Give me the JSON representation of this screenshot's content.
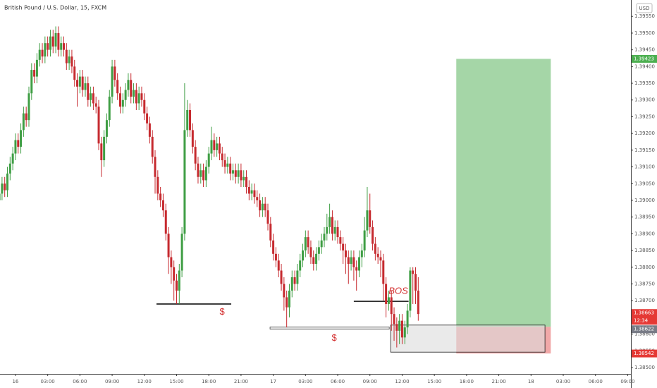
{
  "chart_data": {
    "type": "candlestick",
    "title": "British Pound / U.S. Dollar, 15, FXCM",
    "currency": "USD",
    "up_color": "#3f9e44",
    "down_color": "#c62a2f",
    "grid": false,
    "x": [
      -1.5,
      -1.25,
      -1,
      -0.75,
      -0.5,
      -0.25,
      0,
      0.25,
      0.5,
      0.75,
      1,
      1.25,
      1.5,
      1.75,
      2,
      2.25,
      2.5,
      2.75,
      3,
      3.25,
      3.5,
      3.75,
      4,
      4.25,
      4.5,
      4.75,
      5,
      5.25,
      5.5,
      5.75,
      6,
      6.25,
      6.5,
      6.75,
      7,
      7.25,
      7.5,
      7.75,
      8,
      8.25,
      8.5,
      8.75,
      9,
      9.25,
      9.5,
      9.75,
      10,
      10.25,
      10.5,
      10.75,
      11,
      11.25,
      11.5,
      11.75,
      12,
      12.25,
      12.5,
      12.75,
      13,
      13.25,
      13.5,
      13.75,
      14,
      14.25,
      14.5,
      14.75,
      15,
      15.25,
      15.5,
      15.75,
      16,
      16.25,
      16.5,
      16.75,
      17,
      17.25,
      17.5,
      17.75,
      18,
      18.25,
      18.5,
      18.75,
      19,
      19.25,
      19.5,
      19.75,
      20,
      20.25,
      20.5,
      20.75,
      21,
      21.25,
      21.5,
      21.75,
      22,
      22.25,
      22.5,
      22.75,
      23,
      23.25,
      23.5,
      23.75,
      24,
      24.25,
      24.5,
      24.75,
      25,
      25.25,
      25.5,
      25.75,
      26,
      26.25,
      26.5,
      26.75,
      27,
      27.25,
      27.5,
      27.75,
      28,
      28.25,
      28.5,
      28.75,
      29,
      29.25,
      29.5,
      29.75,
      30,
      30.25,
      30.5,
      30.75,
      31,
      31.25,
      31.5,
      31.75,
      32,
      32.25,
      32.5,
      32.75,
      33,
      33.25,
      33.5,
      33.75,
      34,
      34.25,
      34.5,
      34.75,
      35,
      35.25,
      35.5,
      35.75,
      36,
      36.25,
      36.5,
      36.75,
      37,
      37.25,
      37.5
    ],
    "open": [
      1.39,
      1.3902,
      1.3905,
      1.3903,
      1.3908,
      1.3911,
      1.3914,
      1.3918,
      1.3916,
      1.3921,
      1.3926,
      1.3924,
      1.3932,
      1.3939,
      1.3937,
      1.3942,
      1.3945,
      1.3943,
      1.3947,
      1.3945,
      1.3949,
      1.3946,
      1.395,
      1.3945,
      1.3947,
      1.3945,
      1.3941,
      1.3943,
      1.394,
      1.3936,
      1.3934,
      1.3937,
      1.3933,
      1.3935,
      1.393,
      1.3932,
      1.3929,
      1.3928,
      1.3917,
      1.3912,
      1.3919,
      1.3924,
      1.3931,
      1.394,
      1.3936,
      1.3932,
      1.3928,
      1.393,
      1.3933,
      1.3936,
      1.3931,
      1.3933,
      1.3929,
      1.3932,
      1.393,
      1.3926,
      1.3923,
      1.3919,
      1.3913,
      1.3907,
      1.3902,
      1.39,
      1.3897,
      1.389,
      1.3883,
      1.388,
      1.3876,
      1.3873,
      1.3879,
      1.389,
      1.3921,
      1.3927,
      1.3921,
      1.3916,
      1.3911,
      1.3907,
      1.3909,
      1.3906,
      1.391,
      1.3914,
      1.3918,
      1.3915,
      1.3917,
      1.3914,
      1.3912,
      1.391,
      1.3911,
      1.3908,
      1.3909,
      1.3907,
      1.3909,
      1.3906,
      1.3907,
      1.3904,
      1.3902,
      1.3903,
      1.3901,
      1.39,
      1.3897,
      1.3899,
      1.3897,
      1.3893,
      1.3888,
      1.3884,
      1.3882,
      1.3879,
      1.3875,
      1.3871,
      1.3868,
      1.3873,
      1.3877,
      1.3875,
      1.3879,
      1.3882,
      1.3885,
      1.3889,
      1.3886,
      1.3883,
      1.3881,
      1.3884,
      1.3886,
      1.3888,
      1.389,
      1.3892,
      1.3895,
      1.389,
      1.3892,
      1.3889,
      1.3887,
      1.3885,
      1.3883,
      1.3881,
      1.3883,
      1.388,
      1.3879,
      1.3883,
      1.3885,
      1.3891,
      1.3897,
      1.3892,
      1.3887,
      1.3884,
      1.3883,
      1.3882,
      1.3875,
      1.3869,
      1.3871,
      1.3866,
      1.3863,
      1.3861,
      1.3864,
      1.3859,
      1.3862,
      1.3867,
      1.3879,
      1.3878,
      1.3873
    ],
    "high": [
      1.3904,
      1.3907,
      1.3907,
      1.391,
      1.3913,
      1.3916,
      1.392,
      1.392,
      1.3923,
      1.3928,
      1.3928,
      1.3934,
      1.3941,
      1.3941,
      1.3944,
      1.3947,
      1.3947,
      1.3949,
      1.3949,
      1.3951,
      1.3951,
      1.3952,
      1.3952,
      1.3949,
      1.3949,
      1.3947,
      1.3945,
      1.3945,
      1.3942,
      1.3938,
      1.3939,
      1.3939,
      1.3937,
      1.3937,
      1.3934,
      1.3934,
      1.3931,
      1.393,
      1.3919,
      1.3921,
      1.3926,
      1.3933,
      1.3942,
      1.3942,
      1.3938,
      1.3934,
      1.3932,
      1.3935,
      1.3938,
      1.3938,
      1.3935,
      1.3935,
      1.3934,
      1.3934,
      1.3932,
      1.3928,
      1.3925,
      1.3921,
      1.3915,
      1.3909,
      1.3904,
      1.3902,
      1.3899,
      1.3892,
      1.3885,
      1.3882,
      1.3878,
      1.3881,
      1.3892,
      1.3935,
      1.393,
      1.3929,
      1.3923,
      1.3918,
      1.3913,
      1.3911,
      1.3911,
      1.3912,
      1.3916,
      1.3922,
      1.392,
      1.3919,
      1.3919,
      1.3916,
      1.3914,
      1.3913,
      1.3913,
      1.3911,
      1.3911,
      1.3911,
      1.3911,
      1.3909,
      1.3909,
      1.3906,
      1.3905,
      1.3905,
      1.3903,
      1.3902,
      1.3901,
      1.3901,
      1.3899,
      1.3895,
      1.389,
      1.3886,
      1.3884,
      1.3881,
      1.3877,
      1.3873,
      1.3875,
      1.3879,
      1.3879,
      1.3881,
      1.3884,
      1.3887,
      1.3891,
      1.3891,
      1.3888,
      1.3885,
      1.3886,
      1.3888,
      1.389,
      1.3892,
      1.3896,
      1.3899,
      1.3897,
      1.3894,
      1.3894,
      1.3891,
      1.3889,
      1.3887,
      1.3885,
      1.3885,
      1.3885,
      1.3882,
      1.3885,
      1.3887,
      1.3895,
      1.3904,
      1.3902,
      1.3894,
      1.3889,
      1.3886,
      1.3885,
      1.3884,
      1.3877,
      1.3873,
      1.3873,
      1.3868,
      1.3865,
      1.3866,
      1.3866,
      1.3864,
      1.3869,
      1.388,
      1.388,
      1.388,
      1.3877
    ],
    "low": [
      1.3898,
      1.39,
      1.3901,
      1.3901,
      1.3906,
      1.3909,
      1.3912,
      1.3914,
      1.3914,
      1.3919,
      1.3922,
      1.3922,
      1.393,
      1.3935,
      1.3935,
      1.394,
      1.3941,
      1.3941,
      1.3943,
      1.3943,
      1.3944,
      1.3944,
      1.3943,
      1.3943,
      1.3943,
      1.3939,
      1.3939,
      1.3938,
      1.3934,
      1.3928,
      1.3932,
      1.3931,
      1.3931,
      1.3928,
      1.3928,
      1.3927,
      1.3926,
      1.3915,
      1.3907,
      1.391,
      1.3917,
      1.3922,
      1.3929,
      1.3934,
      1.393,
      1.3926,
      1.3926,
      1.3928,
      1.3931,
      1.3929,
      1.3929,
      1.3927,
      1.3927,
      1.3928,
      1.3924,
      1.3921,
      1.3917,
      1.3911,
      1.3902,
      1.39,
      1.3898,
      1.3895,
      1.3888,
      1.3878,
      1.3875,
      1.387,
      1.3869,
      1.3869,
      1.3877,
      1.3888,
      1.3919,
      1.3919,
      1.3914,
      1.3909,
      1.3905,
      1.3905,
      1.3904,
      1.3904,
      1.3908,
      1.3912,
      1.3913,
      1.3913,
      1.3912,
      1.391,
      1.3908,
      1.3908,
      1.3906,
      1.3906,
      1.3905,
      1.3905,
      1.3904,
      1.3904,
      1.3902,
      1.39,
      1.39,
      1.3899,
      1.3898,
      1.3895,
      1.3895,
      1.3895,
      1.3891,
      1.3886,
      1.3882,
      1.388,
      1.3877,
      1.3873,
      1.3867,
      1.3862,
      1.3865,
      1.3871,
      1.3873,
      1.3873,
      1.3877,
      1.388,
      1.3883,
      1.3884,
      1.3881,
      1.3879,
      1.3879,
      1.3882,
      1.3884,
      1.3886,
      1.3888,
      1.389,
      1.3888,
      1.3888,
      1.3887,
      1.3885,
      1.3881,
      1.3878,
      1.3875,
      1.3879,
      1.3876,
      1.3873,
      1.3877,
      1.388,
      1.3883,
      1.3889,
      1.389,
      1.3885,
      1.3882,
      1.3881,
      1.3877,
      1.387,
      1.3865,
      1.3867,
      1.3861,
      1.3858,
      1.3856,
      1.3857,
      1.3857,
      1.3857,
      1.386,
      1.3865,
      1.3869,
      1.3869,
      1.3864
    ],
    "close": [
      1.3902,
      1.3905,
      1.3903,
      1.3908,
      1.3911,
      1.3914,
      1.3918,
      1.3916,
      1.3921,
      1.3926,
      1.3924,
      1.3932,
      1.3939,
      1.3937,
      1.3942,
      1.3945,
      1.3943,
      1.3947,
      1.3945,
      1.3949,
      1.3946,
      1.395,
      1.3945,
      1.3947,
      1.3945,
      1.3941,
      1.3943,
      1.394,
      1.3936,
      1.3934,
      1.3937,
      1.3933,
      1.3935,
      1.393,
      1.3932,
      1.3929,
      1.3928,
      1.3917,
      1.3912,
      1.3919,
      1.3924,
      1.3931,
      1.394,
      1.3936,
      1.3932,
      1.3928,
      1.393,
      1.3933,
      1.3936,
      1.3931,
      1.3933,
      1.3929,
      1.3932,
      1.393,
      1.3926,
      1.3923,
      1.3919,
      1.3913,
      1.3907,
      1.3902,
      1.39,
      1.3897,
      1.389,
      1.3883,
      1.388,
      1.3876,
      1.3873,
      1.3879,
      1.389,
      1.3921,
      1.3927,
      1.3921,
      1.3916,
      1.3911,
      1.3907,
      1.3909,
      1.3906,
      1.391,
      1.3914,
      1.3918,
      1.3915,
      1.3917,
      1.3914,
      1.3912,
      1.391,
      1.3911,
      1.3908,
      1.3909,
      1.3907,
      1.3909,
      1.3906,
      1.3907,
      1.3904,
      1.3902,
      1.3903,
      1.3901,
      1.39,
      1.3897,
      1.3899,
      1.3897,
      1.3893,
      1.3888,
      1.3884,
      1.3882,
      1.3879,
      1.3875,
      1.3871,
      1.3868,
      1.3873,
      1.3877,
      1.3875,
      1.3879,
      1.3882,
      1.3885,
      1.3889,
      1.3886,
      1.3883,
      1.3881,
      1.3884,
      1.3886,
      1.3888,
      1.389,
      1.3892,
      1.3895,
      1.389,
      1.3892,
      1.3889,
      1.3887,
      1.3885,
      1.3883,
      1.3881,
      1.3883,
      1.388,
      1.3879,
      1.3883,
      1.3885,
      1.3891,
      1.3897,
      1.3892,
      1.3887,
      1.3884,
      1.3883,
      1.3882,
      1.3875,
      1.3869,
      1.3871,
      1.3866,
      1.3863,
      1.3861,
      1.3864,
      1.3859,
      1.3862,
      1.3867,
      1.3879,
      1.3878,
      1.3873,
      1.3866
    ],
    "xlim": [
      -1.44,
      57.3
    ],
    "xticks": [
      {
        "value": 0,
        "label": "16"
      },
      {
        "value": 3,
        "label": "03:00"
      },
      {
        "value": 6,
        "label": "06:00"
      },
      {
        "value": 9,
        "label": "09:00"
      },
      {
        "value": 12,
        "label": "12:00"
      },
      {
        "value": 15,
        "label": "15:00"
      },
      {
        "value": 18,
        "label": "18:00"
      },
      {
        "value": 21,
        "label": "21:00"
      },
      {
        "value": 24,
        "label": "17"
      },
      {
        "value": 27,
        "label": "03:00"
      },
      {
        "value": 30,
        "label": "06:00"
      },
      {
        "value": 33,
        "label": "09:00"
      },
      {
        "value": 36,
        "label": "12:00"
      },
      {
        "value": 39,
        "label": "15:00"
      },
      {
        "value": 42,
        "label": "18:00"
      },
      {
        "value": 45,
        "label": "21:00"
      },
      {
        "value": 48,
        "label": "18"
      },
      {
        "value": 51,
        "label": "03:00"
      },
      {
        "value": 54,
        "label": "06:00"
      },
      {
        "value": 57,
        "label": "09:00"
      }
    ],
    "ylim": [
      1.38481,
      1.39599
    ],
    "yticks": [
      {
        "value": 1.385,
        "label": "1.38500"
      },
      {
        "value": 1.3855,
        "label": "1.38550"
      },
      {
        "value": 1.386,
        "label": "1.38600"
      },
      {
        "value": 1.3865,
        "label": "1.38650"
      },
      {
        "value": 1.387,
        "label": "1.38700"
      },
      {
        "value": 1.3875,
        "label": "1.38750"
      },
      {
        "value": 1.388,
        "label": "1.38800"
      },
      {
        "value": 1.3885,
        "label": "1.38850"
      },
      {
        "value": 1.389,
        "label": "1.38900"
      },
      {
        "value": 1.3895,
        "label": "1.38950"
      },
      {
        "value": 1.39,
        "label": "1.39000"
      },
      {
        "value": 1.3905,
        "label": "1.39050"
      },
      {
        "value": 1.391,
        "label": "1.39100"
      },
      {
        "value": 1.3915,
        "label": "1.39150"
      },
      {
        "value": 1.392,
        "label": "1.39200"
      },
      {
        "value": 1.3925,
        "label": "1.39250"
      },
      {
        "value": 1.393,
        "label": "1.39300"
      },
      {
        "value": 1.3935,
        "label": "1.39350"
      },
      {
        "value": 1.394,
        "label": "1.39400"
      },
      {
        "value": 1.3945,
        "label": "1.39450"
      },
      {
        "value": 1.395,
        "label": "1.39500"
      },
      {
        "value": 1.3955,
        "label": "1.39550"
      }
    ],
    "last_price": 1.38663,
    "countdown": "12:34",
    "position": {
      "entry": 1.38622,
      "stop": 1.38542,
      "target": 1.39423,
      "x": [
        41.04,
        49.84
      ],
      "profit_color": "#a5d6a7",
      "loss_color": "#f1a8a8"
    },
    "box": {
      "top": 1.38627,
      "bottom": 1.38546,
      "x": [
        34.93,
        49.3
      ],
      "color": "#dcdcdc"
    },
    "levels": [
      {
        "price": 1.3869,
        "x": [
          13.13,
          20.09
        ],
        "style": "line"
      },
      {
        "price": 1.38618,
        "x": [
          23.7,
          34.8
        ],
        "style": "double"
      },
      {
        "price": 1.38698,
        "x": [
          31.5,
          36.6
        ],
        "style": "line"
      }
    ],
    "annotations": [
      {
        "text": "$",
        "x": 19.24,
        "y": 1.38665
      },
      {
        "text": "$",
        "x": 29.68,
        "y": 1.38587
      },
      {
        "text": "BOS",
        "x": 35.65,
        "y": 1.38728
      }
    ]
  }
}
